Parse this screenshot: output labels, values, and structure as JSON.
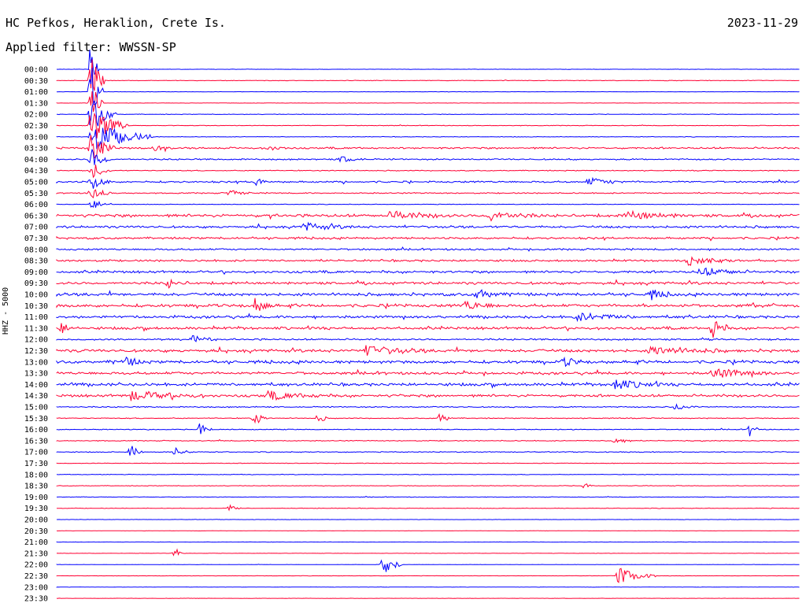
{
  "header": {
    "station": "HC Pefkos, Heraklion, Crete Is.",
    "date": "2023-11-29",
    "filter": "Applied filter: WWSSN-SP"
  },
  "chart_data": {
    "type": "line",
    "title": "HC Pefkos, Heraklion, Crete Is.",
    "ylabel": "HHZ - 5000",
    "trace_labels": [
      "00:00",
      "00:30",
      "01:00",
      "01:30",
      "02:00",
      "02:30",
      "03:00",
      "03:30",
      "04:00",
      "04:30",
      "05:00",
      "05:30",
      "06:00",
      "06:30",
      "07:00",
      "07:30",
      "08:00",
      "08:30",
      "09:00",
      "09:30",
      "10:00",
      "10:30",
      "11:00",
      "11:30",
      "12:00",
      "12:30",
      "13:00",
      "13:30",
      "14:00",
      "14:30",
      "15:00",
      "15:30",
      "16:00",
      "16:30",
      "17:00",
      "17:30",
      "18:00",
      "18:30",
      "19:00",
      "19:30",
      "20:00",
      "20:30",
      "21:00",
      "21:30",
      "22:00",
      "22:30",
      "23:00",
      "23:30"
    ],
    "colors": [
      "#0000ff",
      "#ff0033"
    ],
    "line_minutes": 30,
    "noise_level": [
      0.1,
      0.2,
      0.1,
      0.1,
      0.2,
      0.2,
      0.2,
      0.6,
      0.5,
      0.3,
      0.6,
      0.4,
      0.2,
      1.0,
      0.8,
      0.7,
      0.6,
      0.7,
      0.8,
      0.9,
      1.0,
      1.0,
      0.9,
      0.9,
      0.6,
      1.0,
      1.0,
      0.9,
      1.0,
      0.9,
      0.4,
      0.3,
      0.3,
      0.3,
      0.3,
      0.2,
      0.2,
      0.2,
      0.2,
      0.2,
      0.1,
      0.1,
      0.1,
      0.1,
      0.1,
      0.1,
      0.1,
      0.1
    ],
    "events": [
      {
        "line": 0,
        "minute": 1.4,
        "amp": 45,
        "dur": 0.3
      },
      {
        "line": 1,
        "minute": 1.4,
        "amp": 40,
        "dur": 0.6
      },
      {
        "line": 2,
        "minute": 1.4,
        "amp": 35,
        "dur": 0.5
      },
      {
        "line": 3,
        "minute": 1.4,
        "amp": 30,
        "dur": 0.5
      },
      {
        "line": 4,
        "minute": 1.4,
        "amp": 28,
        "dur": 1.0
      },
      {
        "line": 5,
        "minute": 1.4,
        "amp": 25,
        "dur": 1.5
      },
      {
        "line": 6,
        "minute": 1.4,
        "amp": 22,
        "dur": 2.5
      },
      {
        "line": 7,
        "minute": 1.4,
        "amp": 18,
        "dur": 1.0
      },
      {
        "line": 8,
        "minute": 1.4,
        "amp": 14,
        "dur": 0.8
      },
      {
        "line": 9,
        "minute": 1.4,
        "amp": 12,
        "dur": 0.8
      },
      {
        "line": 10,
        "minute": 1.4,
        "amp": 10,
        "dur": 0.8
      },
      {
        "line": 11,
        "minute": 1.4,
        "amp": 9,
        "dur": 0.8
      },
      {
        "line": 12,
        "minute": 1.4,
        "amp": 8,
        "dur": 0.8
      },
      {
        "line": 7,
        "minute": 4.0,
        "amp": 4,
        "dur": 0.8
      },
      {
        "line": 7,
        "minute": 8.5,
        "amp": 3,
        "dur": 1.0
      },
      {
        "line": 8,
        "minute": 11.5,
        "amp": 4,
        "dur": 1.0
      },
      {
        "line": 10,
        "minute": 8.0,
        "amp": 6,
        "dur": 0.6
      },
      {
        "line": 10,
        "minute": 21.5,
        "amp": 5,
        "dur": 1.5
      },
      {
        "line": 11,
        "minute": 7.0,
        "amp": 4,
        "dur": 1.0
      },
      {
        "line": 13,
        "minute": 13.5,
        "amp": 5,
        "dur": 2.5
      },
      {
        "line": 13,
        "minute": 17.5,
        "amp": 6,
        "dur": 2.0
      },
      {
        "line": 13,
        "minute": 23.0,
        "amp": 5,
        "dur": 2.5
      },
      {
        "line": 14,
        "minute": 10.0,
        "amp": 5,
        "dur": 2.0
      },
      {
        "line": 17,
        "minute": 25.5,
        "amp": 5,
        "dur": 2.0
      },
      {
        "line": 18,
        "minute": 26.0,
        "amp": 6,
        "dur": 2.0
      },
      {
        "line": 19,
        "minute": 4.5,
        "amp": 5,
        "dur": 0.8
      },
      {
        "line": 20,
        "minute": 17.0,
        "amp": 7,
        "dur": 1.0
      },
      {
        "line": 20,
        "minute": 24.0,
        "amp": 6,
        "dur": 1.0
      },
      {
        "line": 21,
        "minute": 8.0,
        "amp": 9,
        "dur": 0.8
      },
      {
        "line": 21,
        "minute": 16.5,
        "amp": 5,
        "dur": 1.5
      },
      {
        "line": 22,
        "minute": 21.0,
        "amp": 5,
        "dur": 2.5
      },
      {
        "line": 23,
        "minute": 0.2,
        "amp": 8,
        "dur": 0.5
      },
      {
        "line": 23,
        "minute": 26.5,
        "amp": 16,
        "dur": 0.6
      },
      {
        "line": 24,
        "minute": 5.5,
        "amp": 5,
        "dur": 1.0
      },
      {
        "line": 25,
        "minute": 12.5,
        "amp": 6,
        "dur": 2.5
      },
      {
        "line": 25,
        "minute": 24.0,
        "amp": 5,
        "dur": 3.0
      },
      {
        "line": 26,
        "minute": 2.8,
        "amp": 6,
        "dur": 0.8
      },
      {
        "line": 26,
        "minute": 20.5,
        "amp": 6,
        "dur": 0.8
      },
      {
        "line": 27,
        "minute": 26.5,
        "amp": 6,
        "dur": 2.5
      },
      {
        "line": 28,
        "minute": 22.5,
        "amp": 6,
        "dur": 2.0
      },
      {
        "line": 29,
        "minute": 3.0,
        "amp": 6,
        "dur": 3.0
      },
      {
        "line": 29,
        "minute": 8.5,
        "amp": 5,
        "dur": 2.5
      },
      {
        "line": 30,
        "minute": 25.0,
        "amp": 4,
        "dur": 1.0
      },
      {
        "line": 31,
        "minute": 8.0,
        "amp": 10,
        "dur": 0.5
      },
      {
        "line": 31,
        "minute": 10.6,
        "amp": 10,
        "dur": 0.3
      },
      {
        "line": 31,
        "minute": 15.5,
        "amp": 8,
        "dur": 0.5
      },
      {
        "line": 32,
        "minute": 5.8,
        "amp": 10,
        "dur": 0.5
      },
      {
        "line": 32,
        "minute": 28.0,
        "amp": 9,
        "dur": 0.4
      },
      {
        "line": 33,
        "minute": 22.5,
        "amp": 6,
        "dur": 0.8
      },
      {
        "line": 34,
        "minute": 3.0,
        "amp": 9,
        "dur": 0.5
      },
      {
        "line": 34,
        "minute": 4.8,
        "amp": 5,
        "dur": 0.8
      },
      {
        "line": 37,
        "minute": 21.3,
        "amp": 4,
        "dur": 0.4
      },
      {
        "line": 39,
        "minute": 7.0,
        "amp": 4,
        "dur": 0.5
      },
      {
        "line": 43,
        "minute": 4.8,
        "amp": 8,
        "dur": 0.3
      },
      {
        "line": 44,
        "minute": 13.2,
        "amp": 14,
        "dur": 0.8
      },
      {
        "line": 45,
        "minute": 22.7,
        "amp": 12,
        "dur": 1.5
      }
    ]
  }
}
